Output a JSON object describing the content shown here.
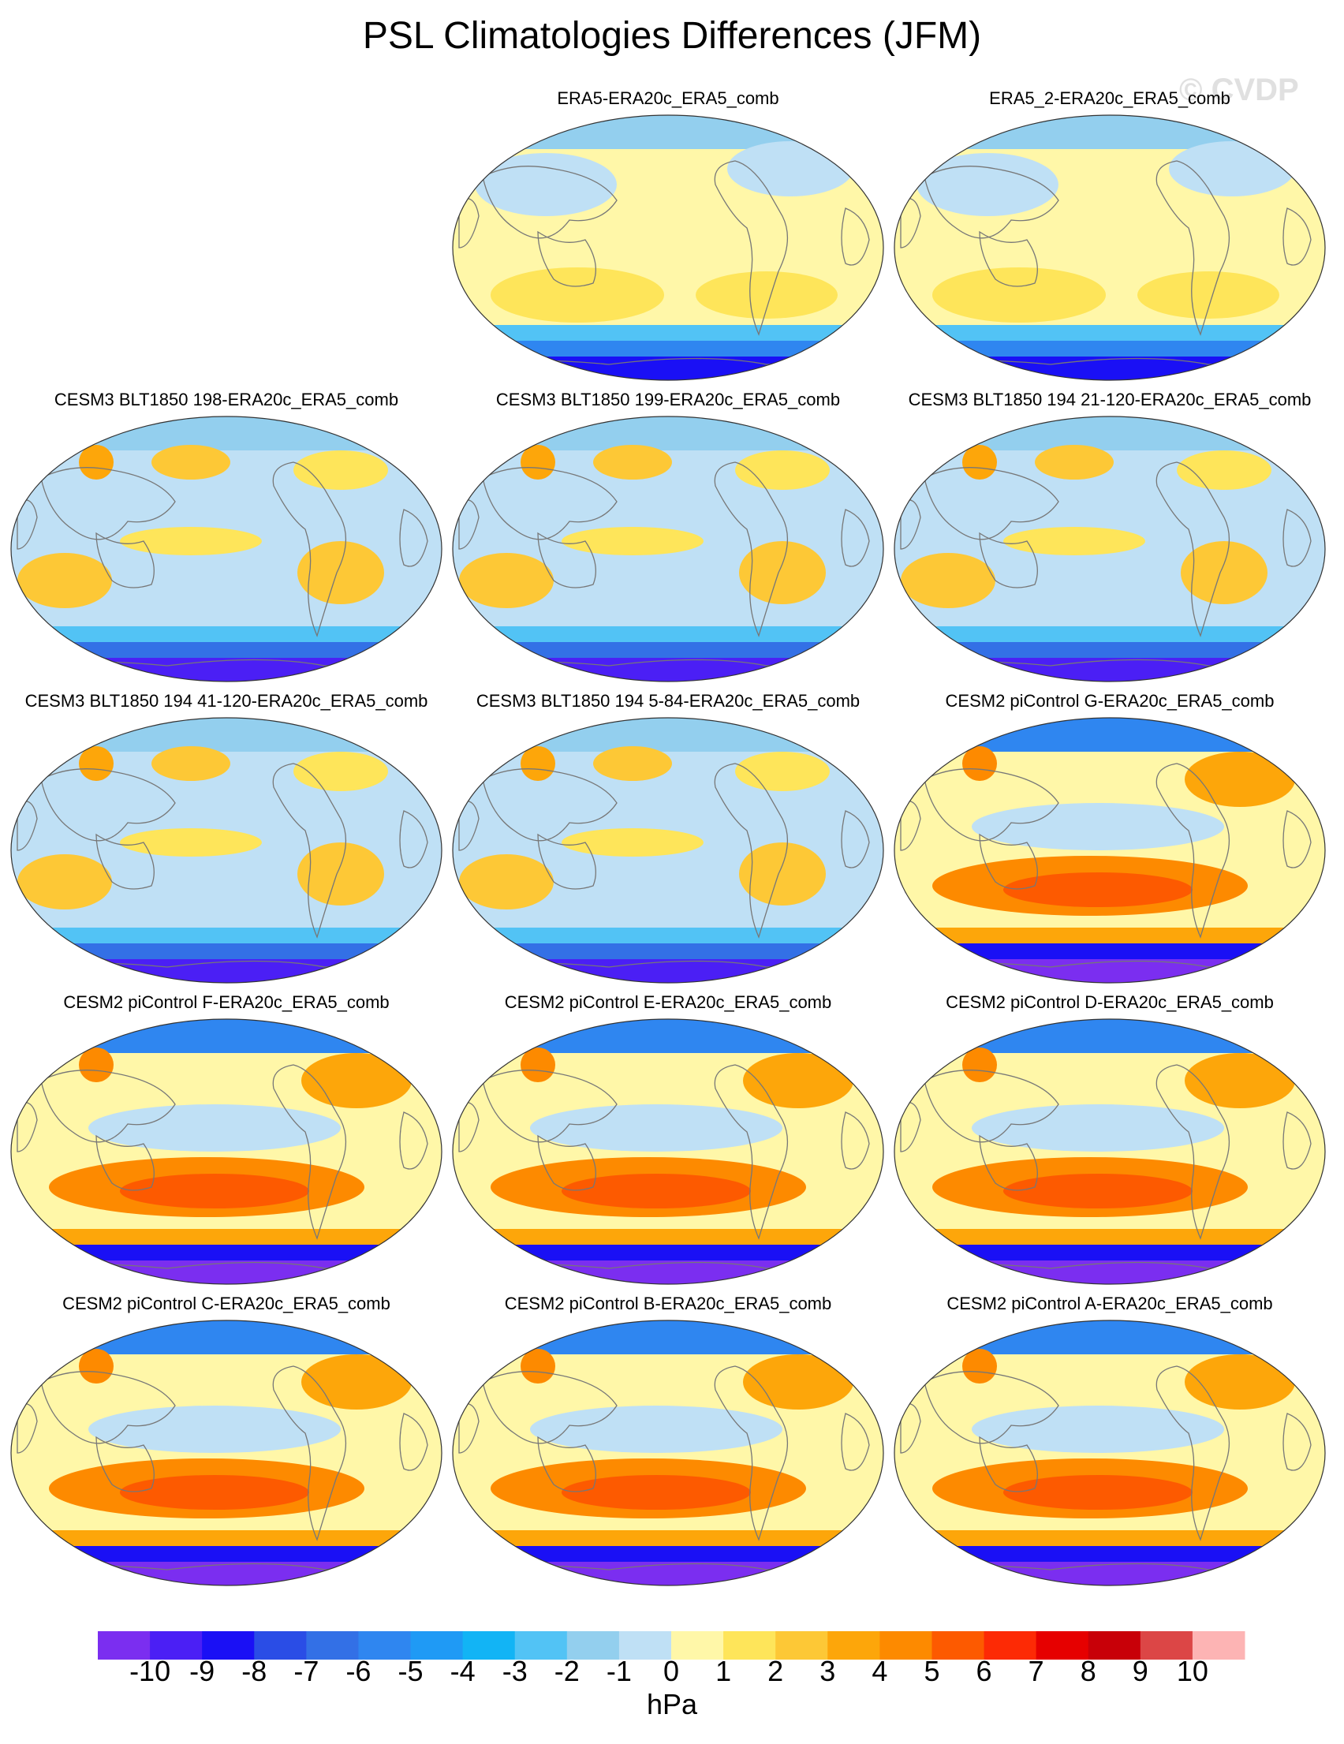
{
  "title": "PSL Climatologies Differences (JFM)",
  "watermark": "© CVDP",
  "panels": [
    {
      "label": "ERA5-ERA20c_ERA5_comb",
      "row": 0,
      "col": 1,
      "style": "obs"
    },
    {
      "label": "ERA5_2-ERA20c_ERA5_comb",
      "row": 0,
      "col": 2,
      "style": "obs"
    },
    {
      "label": "CESM3 BLT1850 198-ERA20c_ERA5_comb",
      "row": 1,
      "col": 0,
      "style": "cesm3"
    },
    {
      "label": "CESM3 BLT1850 199-ERA20c_ERA5_comb",
      "row": 1,
      "col": 1,
      "style": "cesm3"
    },
    {
      "label": "CESM3 BLT1850 194 21-120-ERA20c_ERA5_comb",
      "row": 1,
      "col": 2,
      "style": "cesm3"
    },
    {
      "label": "CESM3 BLT1850 194 41-120-ERA20c_ERA5_comb",
      "row": 2,
      "col": 0,
      "style": "cesm3"
    },
    {
      "label": "CESM3 BLT1850 194 5-84-ERA20c_ERA5_comb",
      "row": 2,
      "col": 1,
      "style": "cesm3"
    },
    {
      "label": "CESM2 piControl G-ERA20c_ERA5_comb",
      "row": 2,
      "col": 2,
      "style": "cesm2"
    },
    {
      "label": "CESM2 piControl F-ERA20c_ERA5_comb",
      "row": 3,
      "col": 0,
      "style": "cesm2"
    },
    {
      "label": "CESM2 piControl E-ERA20c_ERA5_comb",
      "row": 3,
      "col": 1,
      "style": "cesm2"
    },
    {
      "label": "CESM2 piControl D-ERA20c_ERA5_comb",
      "row": 3,
      "col": 2,
      "style": "cesm2"
    },
    {
      "label": "CESM2 piControl C-ERA20c_ERA5_comb",
      "row": 4,
      "col": 0,
      "style": "cesm2"
    },
    {
      "label": "CESM2 piControl B-ERA20c_ERA5_comb",
      "row": 4,
      "col": 1,
      "style": "cesm2"
    },
    {
      "label": "CESM2 piControl A-ERA20c_ERA5_comb",
      "row": 4,
      "col": 2,
      "style": "cesm2"
    }
  ],
  "colorbar": {
    "units": "hPa",
    "tick_labels": [
      "-10",
      "-9",
      "-8",
      "-7",
      "-6",
      "-5",
      "-4",
      "-3",
      "-2",
      "-1",
      "0",
      "1",
      "2",
      "3",
      "4",
      "5",
      "6",
      "7",
      "8",
      "9",
      "10"
    ],
    "colors": [
      "#7b2ef0",
      "#4b1ff5",
      "#1a10f5",
      "#2a4de6",
      "#3370e6",
      "#2f86f0",
      "#1f9af5",
      "#12b4f5",
      "#52c3f5",
      "#93cfee",
      "#bfe0f5",
      "#fff7a8",
      "#fee55a",
      "#fdc836",
      "#fda60a",
      "#fd8a00",
      "#fd5a00",
      "#fd2a05",
      "#e60000",
      "#c80008",
      "#dc4646",
      "#fdb4b4"
    ]
  }
}
